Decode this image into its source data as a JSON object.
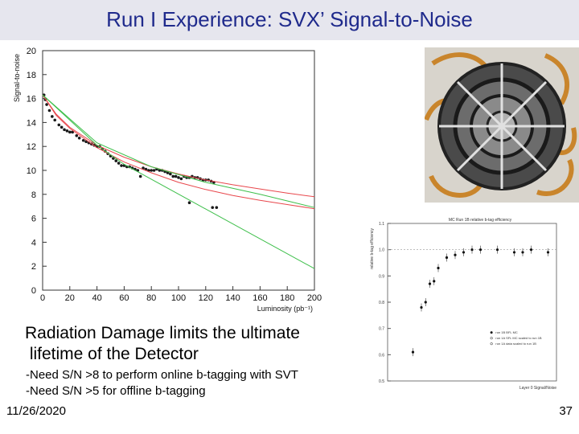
{
  "slide": {
    "title": "Run I Experience: SVX’ Signal-to-Noise",
    "bullet_main_line1": "Radiation Damage limits the ultimate",
    "bullet_main_line2": " lifetime of the Detector",
    "sub_bullet_1": "-Need S/N >8 to perform online b-tagging with SVT",
    "sub_bullet_2": "-Need S/N >5 for offline b-tagging",
    "footer_date": "11/26/2020",
    "page_number": "37"
  },
  "colors": {
    "title_text": "#1f2a8c",
    "title_bar": "#e6e6ee",
    "fit_red": "#e8474c",
    "fit_green": "#3dbf4a",
    "points": "#1a1a1a"
  },
  "chart_data": [
    {
      "type": "scatter",
      "xlabel": "Luminosity (pb⁻¹)",
      "ylabel": "Signal-to-noise",
      "xlim": [
        0,
        200
      ],
      "ylim": [
        0,
        20
      ],
      "xticks": [
        0,
        20,
        40,
        60,
        80,
        100,
        120,
        140,
        160,
        180,
        200
      ],
      "yticks": [
        0,
        2,
        4,
        6,
        8,
        10,
        12,
        14,
        16,
        18,
        20
      ],
      "series": [
        {
          "kind": "points",
          "points": [
            [
              1,
              16.3
            ],
            [
              2,
              15.9
            ],
            [
              3,
              15.5
            ],
            [
              5,
              15.0
            ],
            [
              7,
              14.5
            ],
            [
              9,
              14.2
            ],
            [
              12,
              13.8
            ],
            [
              14,
              13.6
            ],
            [
              16,
              13.4
            ],
            [
              18,
              13.3
            ],
            [
              20,
              13.2
            ],
            [
              22,
              13.2
            ],
            [
              25,
              12.9
            ],
            [
              27,
              12.7
            ],
            [
              30,
              12.5
            ],
            [
              32,
              12.4
            ],
            [
              34,
              12.3
            ],
            [
              36,
              12.2
            ],
            [
              38,
              12.1
            ],
            [
              40,
              12.0
            ],
            [
              42,
              12.0
            ],
            [
              44,
              11.8
            ],
            [
              46,
              11.6
            ],
            [
              48,
              11.4
            ],
            [
              50,
              11.2
            ],
            [
              52,
              11.0
            ],
            [
              54,
              10.8
            ],
            [
              56,
              10.6
            ],
            [
              58,
              10.4
            ],
            [
              60,
              10.4
            ],
            [
              62,
              10.3
            ],
            [
              64,
              10.3
            ],
            [
              66,
              10.2
            ],
            [
              68,
              10.1
            ],
            [
              70,
              10.0
            ],
            [
              72,
              9.5
            ],
            [
              74,
              10.2
            ],
            [
              76,
              10.1
            ],
            [
              78,
              10.0
            ],
            [
              80,
              10.0
            ],
            [
              82,
              10.0
            ],
            [
              84,
              10.1
            ],
            [
              86,
              10.0
            ],
            [
              88,
              10.0
            ],
            [
              90,
              9.9
            ],
            [
              92,
              9.8
            ],
            [
              94,
              9.7
            ],
            [
              96,
              9.5
            ],
            [
              98,
              9.5
            ],
            [
              100,
              9.4
            ],
            [
              102,
              9.3
            ],
            [
              104,
              9.5
            ],
            [
              106,
              9.4
            ],
            [
              108,
              9.4
            ],
            [
              110,
              9.5
            ],
            [
              112,
              9.4
            ],
            [
              114,
              9.4
            ],
            [
              116,
              9.3
            ],
            [
              118,
              9.2
            ],
            [
              120,
              9.2
            ],
            [
              122,
              9.2
            ],
            [
              124,
              9.1
            ],
            [
              126,
              9.0
            ]
          ]
        },
        {
          "kind": "points",
          "points": [
            [
              108,
              7.3
            ],
            [
              125,
              6.9
            ],
            [
              128,
              6.9
            ]
          ]
        },
        {
          "kind": "curve",
          "color": "#e8474c",
          "points": [
            [
              0,
              16.3
            ],
            [
              10,
              14.7
            ],
            [
              20,
              13.6
            ],
            [
              40,
              12.1
            ],
            [
              60,
              11.1
            ],
            [
              80,
              10.3
            ],
            [
              100,
              9.7
            ],
            [
              120,
              9.2
            ],
            [
              140,
              8.8
            ],
            [
              160,
              8.45
            ],
            [
              180,
              8.1
            ],
            [
              200,
              7.8
            ]
          ]
        },
        {
          "kind": "curve",
          "color": "#e8474c",
          "points": [
            [
              0,
              16.3
            ],
            [
              10,
              14.6
            ],
            [
              20,
              13.5
            ],
            [
              40,
              11.9
            ],
            [
              60,
              10.7
            ],
            [
              80,
              9.8
            ],
            [
              100,
              9.0
            ],
            [
              120,
              8.4
            ],
            [
              140,
              7.9
            ],
            [
              160,
              7.5
            ],
            [
              180,
              7.15
            ],
            [
              200,
              6.8
            ]
          ]
        },
        {
          "kind": "line",
          "color": "#3dbf4a",
          "points": [
            [
              0,
              16.3
            ],
            [
              40,
              12.3
            ],
            [
              80,
              10.3
            ],
            [
              120,
              9.0
            ],
            [
              160,
              8.0
            ],
            [
              200,
              6.9
            ]
          ]
        },
        {
          "kind": "line",
          "color": "#3dbf4a",
          "points": [
            [
              0,
              16.3
            ],
            [
              40,
              12.1
            ],
            [
              60,
              10.5
            ],
            [
              200,
              1.8
            ]
          ]
        }
      ]
    },
    {
      "type": "scatter",
      "title": "MC Run 1B relative b-tag efficiency",
      "xlabel": "Layer 0 Signal/Noise",
      "ylabel": "relative b-tag efficiency",
      "xlim": [
        0,
        20
      ],
      "ylim": [
        0.5,
        1.1
      ],
      "yticks": [
        0.5,
        0.6,
        0.7,
        0.8,
        0.9,
        1.0,
        1.1
      ],
      "legend": [
        "run 1B BFL MC",
        "run 1A SFL MC scaled to run 1B",
        "run 1A data scaled to run 1B"
      ],
      "points": [
        [
          3,
          0.61
        ],
        [
          4,
          0.78
        ],
        [
          4.5,
          0.8
        ],
        [
          5,
          0.87
        ],
        [
          5.5,
          0.88
        ],
        [
          6,
          0.93
        ],
        [
          7,
          0.97
        ],
        [
          8,
          0.98
        ],
        [
          9,
          0.99
        ],
        [
          10,
          1.0
        ],
        [
          11,
          1.0
        ],
        [
          13,
          1.0
        ],
        [
          15,
          0.99
        ],
        [
          16,
          0.99
        ],
        [
          17,
          1.0
        ],
        [
          19,
          0.99
        ]
      ]
    }
  ]
}
